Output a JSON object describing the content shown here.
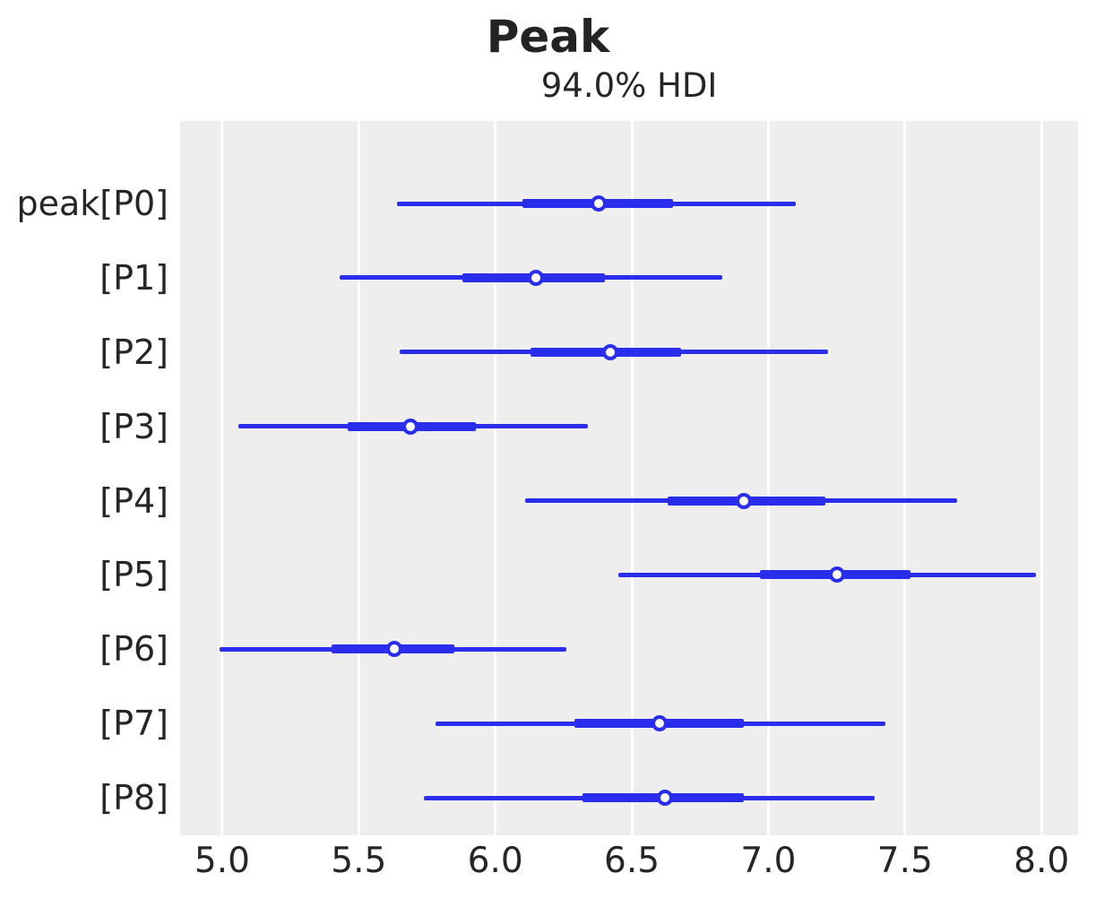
{
  "title": "Peak",
  "subtitle": "94.0% HDI",
  "colors": {
    "line": "#2a2eec",
    "plot_background": "#eeeeee",
    "gridline": "#ffffff",
    "text": "#262626"
  },
  "chart_data": {
    "type": "forest",
    "title": "Peak",
    "subtitle": "94.0% HDI",
    "hdi_prob": "94.0%",
    "xlim": [
      4.846,
      8.134
    ],
    "xticks": [
      5.0,
      5.5,
      6.0,
      6.5,
      7.0,
      7.5,
      8.0
    ],
    "grid": true,
    "legend_position": "none",
    "xlabel": "",
    "ylabel": "",
    "rows": [
      {
        "label": "peak[P0]",
        "hdi_low": 5.64,
        "thick_low": 6.1,
        "median": 6.38,
        "thick_high": 6.65,
        "hdi_high": 7.1
      },
      {
        "label": "[P1]",
        "hdi_low": 5.43,
        "thick_low": 5.88,
        "median": 6.15,
        "thick_high": 6.4,
        "hdi_high": 6.83
      },
      {
        "label": "[P2]",
        "hdi_low": 5.65,
        "thick_low": 6.13,
        "median": 6.42,
        "thick_high": 6.68,
        "hdi_high": 7.22
      },
      {
        "label": "[P3]",
        "hdi_low": 5.06,
        "thick_low": 5.46,
        "median": 5.69,
        "thick_high": 5.93,
        "hdi_high": 6.34
      },
      {
        "label": "[P4]",
        "hdi_low": 6.11,
        "thick_low": 6.63,
        "median": 6.91,
        "thick_high": 7.21,
        "hdi_high": 7.69
      },
      {
        "label": "[P5]",
        "hdi_low": 6.45,
        "thick_low": 6.97,
        "median": 7.25,
        "thick_high": 7.52,
        "hdi_high": 7.98
      },
      {
        "label": "[P6]",
        "hdi_low": 4.99,
        "thick_low": 5.4,
        "median": 5.63,
        "thick_high": 5.85,
        "hdi_high": 6.26
      },
      {
        "label": "[P7]",
        "hdi_low": 5.78,
        "thick_low": 6.29,
        "median": 6.6,
        "thick_high": 6.91,
        "hdi_high": 7.43
      },
      {
        "label": "[P8]",
        "hdi_low": 5.74,
        "thick_low": 6.32,
        "median": 6.62,
        "thick_high": 6.91,
        "hdi_high": 7.39
      }
    ]
  }
}
